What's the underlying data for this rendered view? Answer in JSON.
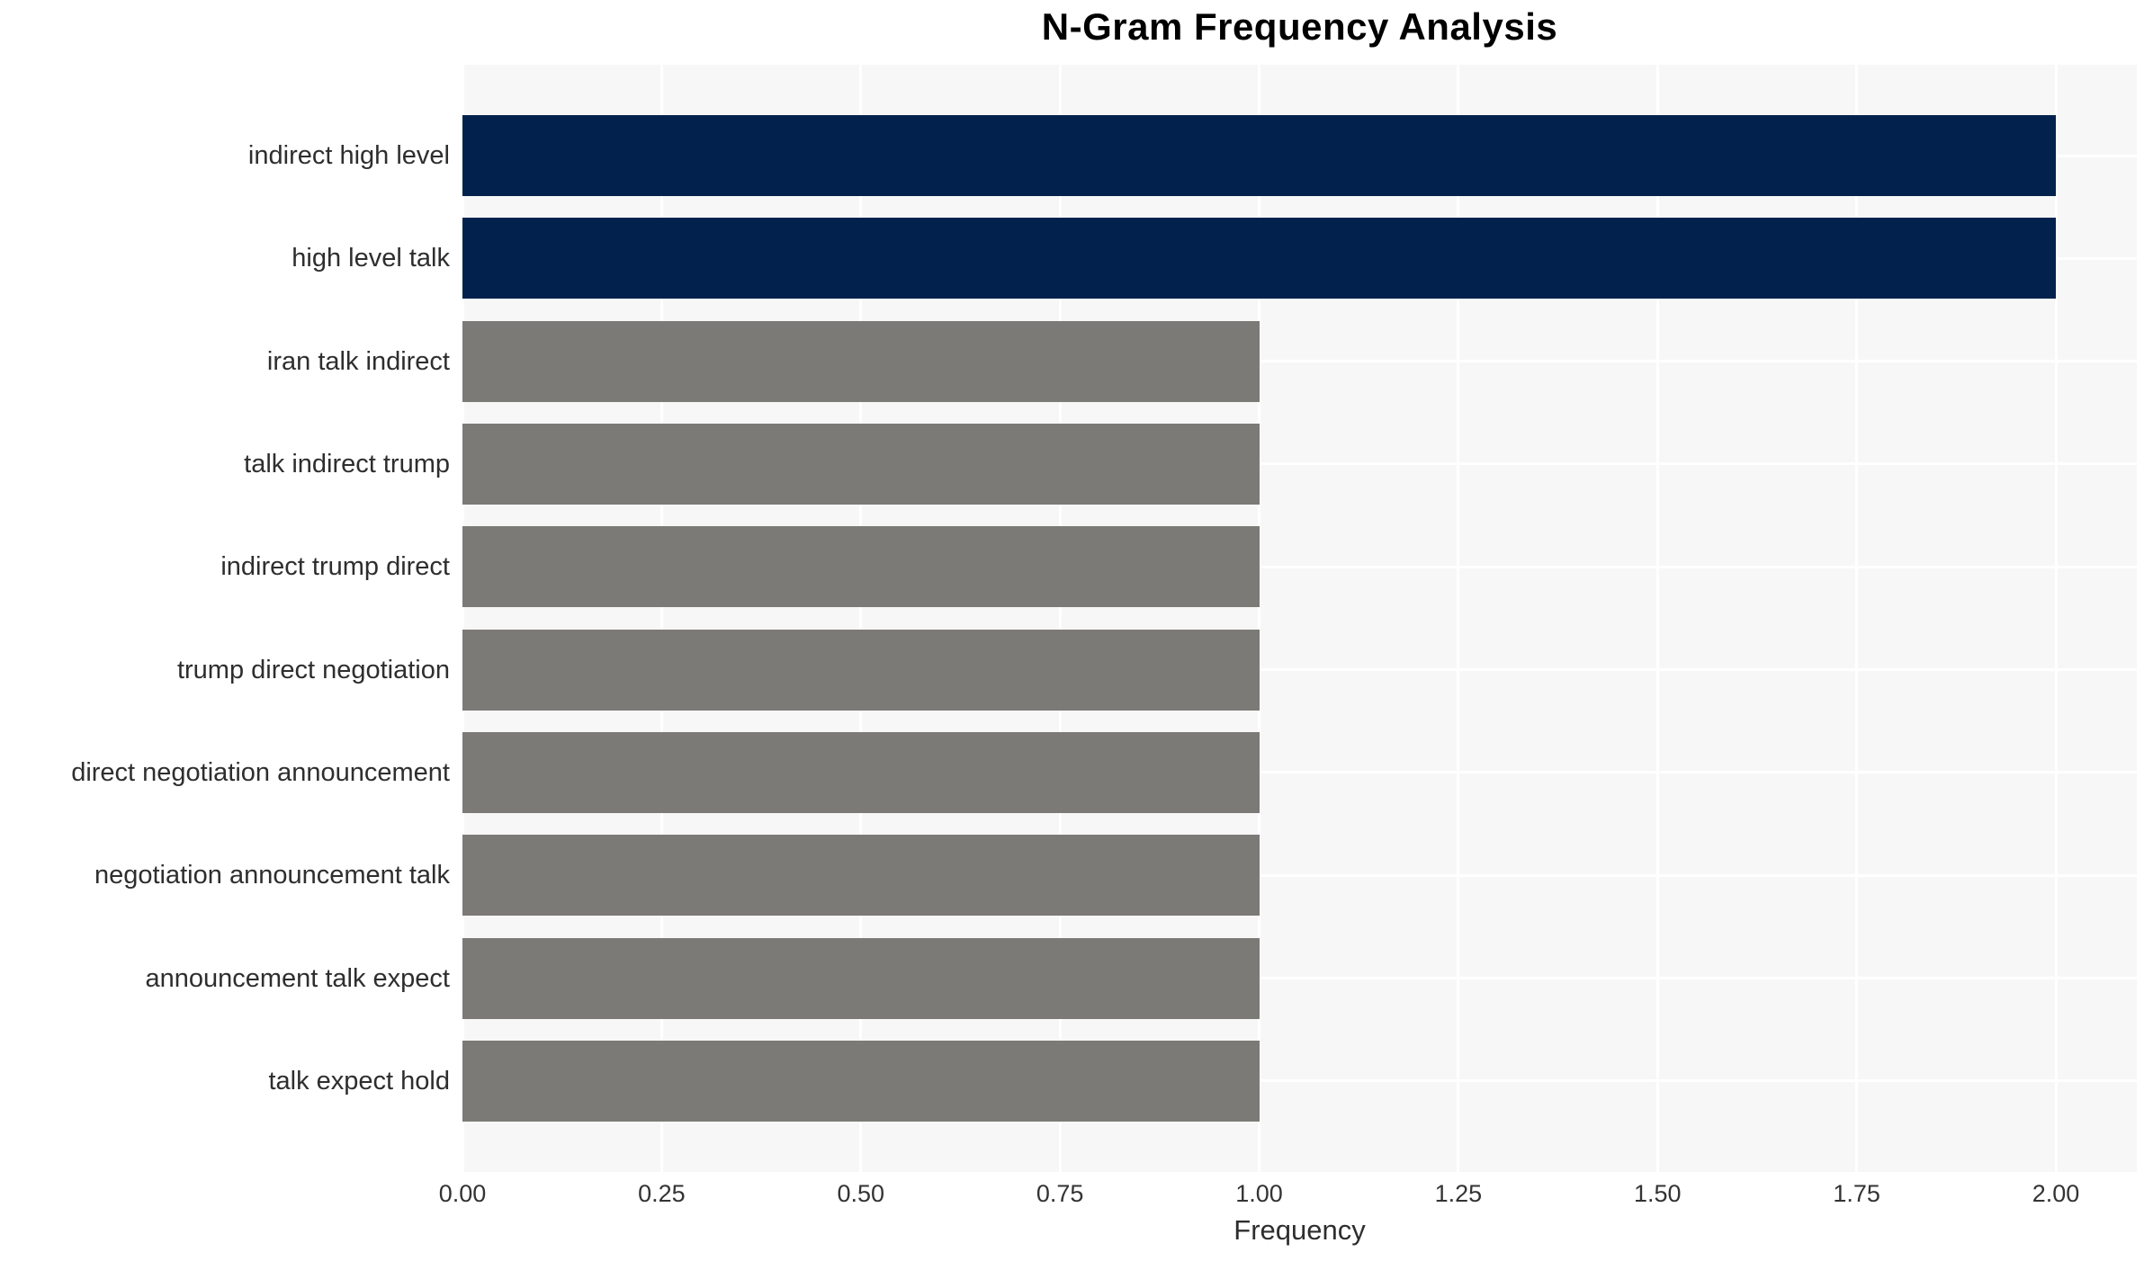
{
  "chart_data": {
    "type": "bar",
    "orientation": "horizontal",
    "title": "N-Gram Frequency Analysis",
    "xlabel": "Frequency",
    "ylabel": "",
    "categories": [
      "indirect high level",
      "high level talk",
      "iran talk indirect",
      "talk indirect trump",
      "indirect trump direct",
      "trump direct negotiation",
      "direct negotiation announcement",
      "negotiation announcement talk",
      "announcement talk expect",
      "talk expect hold"
    ],
    "values": [
      2,
      2,
      1,
      1,
      1,
      1,
      1,
      1,
      1,
      1
    ],
    "bar_colors": [
      "#02224d",
      "#02224d",
      "#7b7a76",
      "#7b7a76",
      "#7b7a76",
      "#7b7a76",
      "#7b7a76",
      "#7b7a76",
      "#7b7a76",
      "#7b7a76"
    ],
    "x_ticks": [
      "0.00",
      "0.25",
      "0.50",
      "0.75",
      "1.00",
      "1.25",
      "1.50",
      "1.75",
      "2.00"
    ],
    "x_tick_values": [
      0,
      0.25,
      0.5,
      0.75,
      1.0,
      1.25,
      1.5,
      1.75,
      2.0
    ],
    "xlim": [
      0,
      2.1
    ],
    "grid": true,
    "legend_position": "none",
    "colors": {
      "highlight_bar": "#02224d",
      "default_bar": "#7b7a76",
      "plot_background": "#f7f7f7",
      "gridline": "#ffffff",
      "page_background": "#ffffff",
      "title_text": "#000000",
      "label_text": "#2e2e2e",
      "tick_text": "#333333"
    }
  }
}
